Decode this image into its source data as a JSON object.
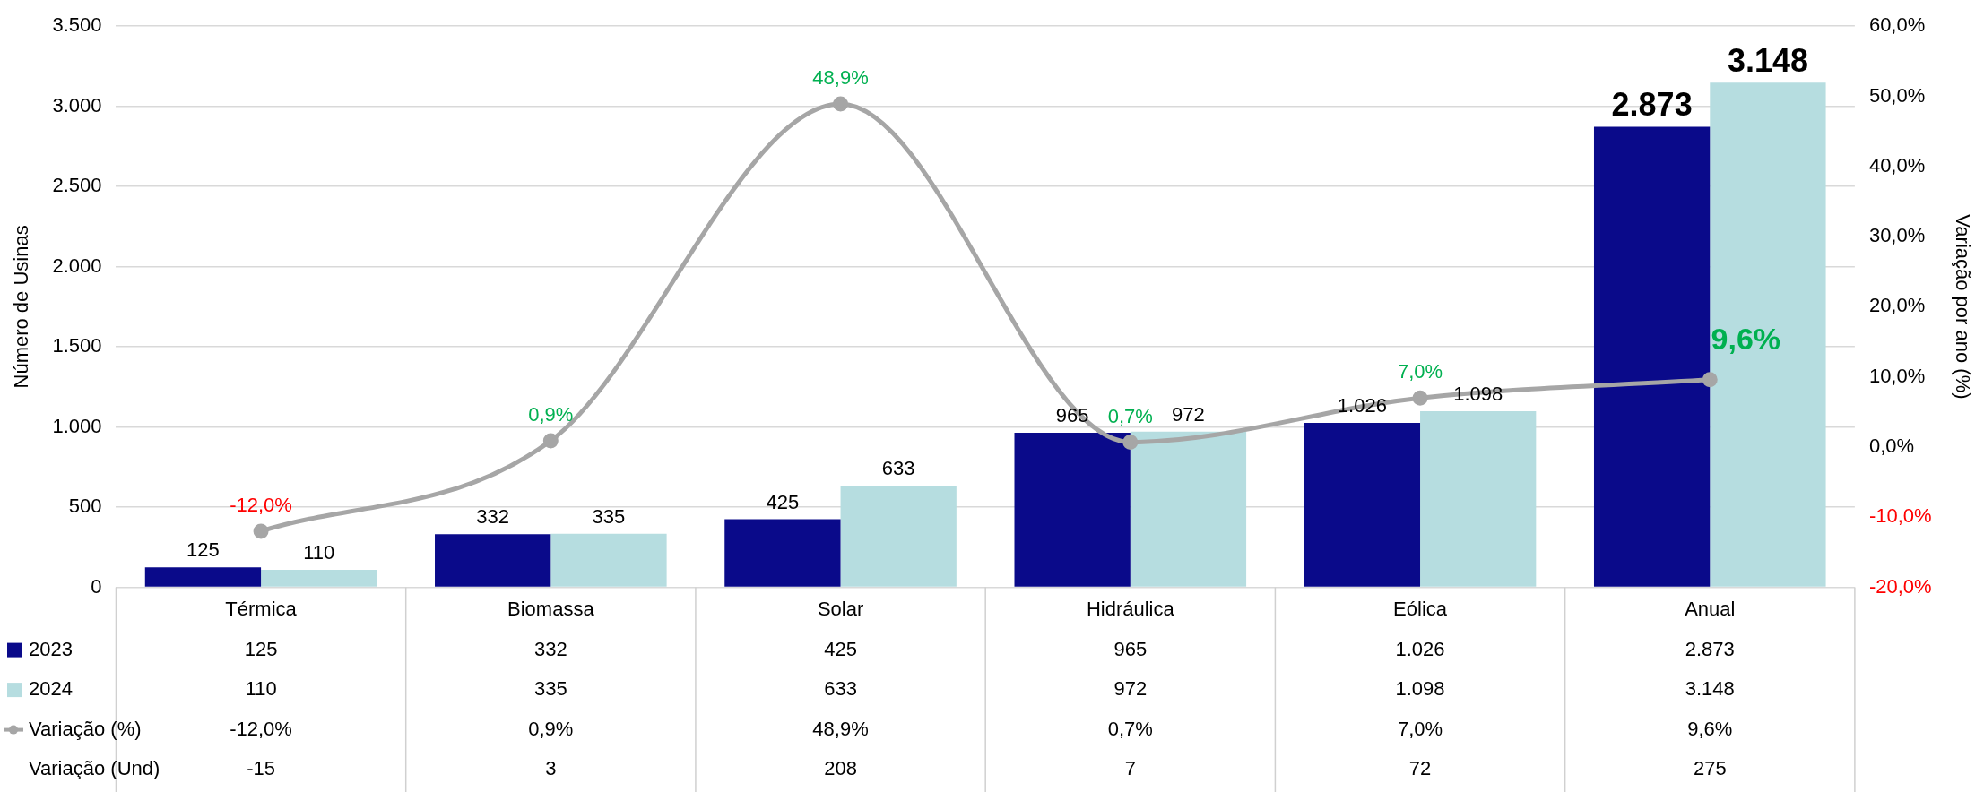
{
  "chart_data": {
    "type": "bar",
    "categories": [
      "Térmica",
      "Biomassa",
      "Solar",
      "Hidráulica",
      "Eólica",
      "Anual"
    ],
    "series": [
      {
        "name": "2023",
        "color": "#0a0a8a",
        "values": [
          125,
          332,
          425,
          965,
          1026,
          2873
        ],
        "value_labels": [
          "125",
          "332",
          "425",
          "965",
          "1.026",
          "2.873"
        ]
      },
      {
        "name": "2024",
        "color": "#b6dde0",
        "values": [
          110,
          335,
          633,
          972,
          1098,
          3148
        ],
        "value_labels": [
          "110",
          "335",
          "633",
          "972",
          "1.098",
          "3.148"
        ]
      },
      {
        "name": "Variação (%)",
        "type": "line",
        "axis": "y2",
        "color": "#a6a6a6",
        "values": [
          -12,
          0.9,
          48.9,
          0.7,
          7,
          9.6
        ],
        "value_labels": [
          "-12,0%",
          "0,9%",
          "48,9%",
          "0,7%",
          "7,0%",
          "9,6%"
        ]
      }
    ],
    "ylabel": "Número de Usinas",
    "y2label": "Variação por ano (%)",
    "ylim": [
      0,
      3500
    ],
    "yticks": [
      {
        "value": 0,
        "label": "0"
      },
      {
        "value": 500,
        "label": "500"
      },
      {
        "value": 1000,
        "label": "1.000"
      },
      {
        "value": 1500,
        "label": "1.500"
      },
      {
        "value": 2000,
        "label": "2.000"
      },
      {
        "value": 2500,
        "label": "2.500"
      },
      {
        "value": 3000,
        "label": "3.000"
      },
      {
        "value": 3500,
        "label": "3.500"
      }
    ],
    "y2lim": [
      -20,
      60
    ],
    "y2ticks": [
      {
        "value": -20,
        "label": "-20,0%"
      },
      {
        "value": -10,
        "label": "-10,0%"
      },
      {
        "value": 0,
        "label": "0,0%"
      },
      {
        "value": 10,
        "label": "10,0%"
      },
      {
        "value": 20,
        "label": "20,0%"
      },
      {
        "value": 30,
        "label": "30,0%"
      },
      {
        "value": 40,
        "label": "40,0%"
      },
      {
        "value": 50,
        "label": "50,0%"
      },
      {
        "value": 60,
        "label": "60,0%"
      }
    ],
    "grid": "y",
    "legend": "bottom left",
    "marker": "circle",
    "line_style": "solid",
    "annotations": [
      "Variação (Und)",
      "-15",
      "3",
      "208",
      "7",
      "72",
      "275"
    ]
  }
}
